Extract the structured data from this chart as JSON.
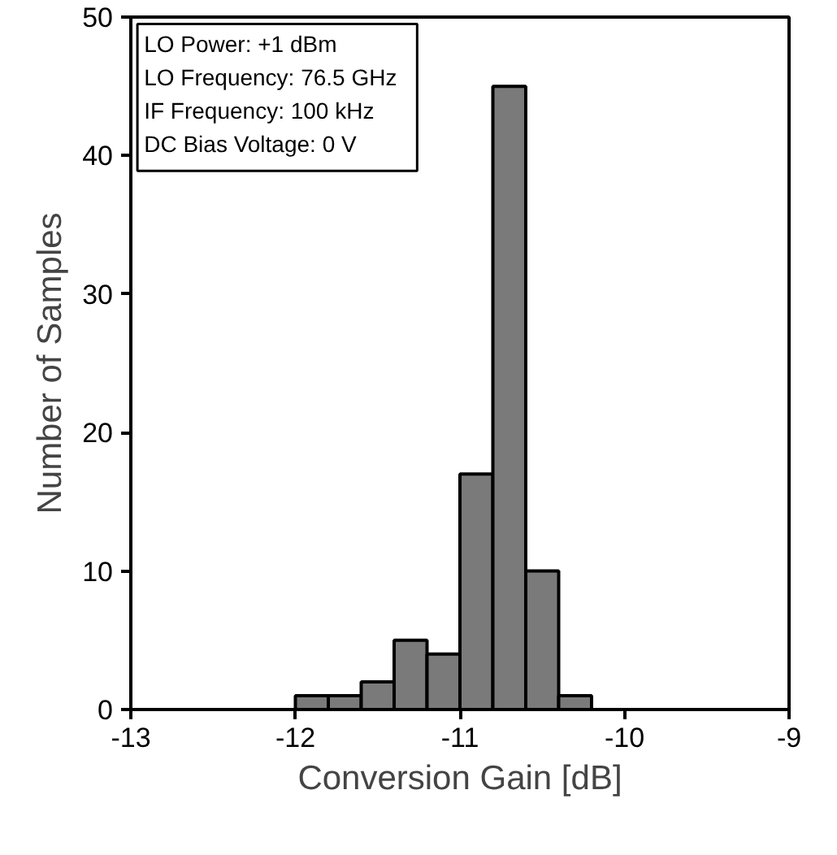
{
  "chart_data": {
    "type": "histogram",
    "xlabel": "Conversion Gain [dB]",
    "ylabel": "Number of Samples",
    "bins": [
      -12,
      -11.8,
      -11.6,
      -11.4,
      -11.2,
      -11,
      -10.8,
      -10.6,
      -10.4,
      -10.2
    ],
    "values": [
      1,
      1,
      2,
      5,
      4,
      17,
      45,
      10,
      1
    ],
    "color": "#7a7a7a",
    "xlim": [
      -13,
      -9
    ],
    "xticks": [
      -13,
      -12,
      -11,
      -10,
      -9
    ],
    "ylim": [
      0,
      50
    ],
    "yticks": [
      0,
      10,
      20,
      30,
      40,
      50
    ],
    "grid": false,
    "annotations": [
      "LO Power: +1 dBm",
      "LO Frequency: 76.5 GHz",
      "IF Frequency: 100 kHz",
      "DC Bias Voltage: 0 V"
    ]
  }
}
